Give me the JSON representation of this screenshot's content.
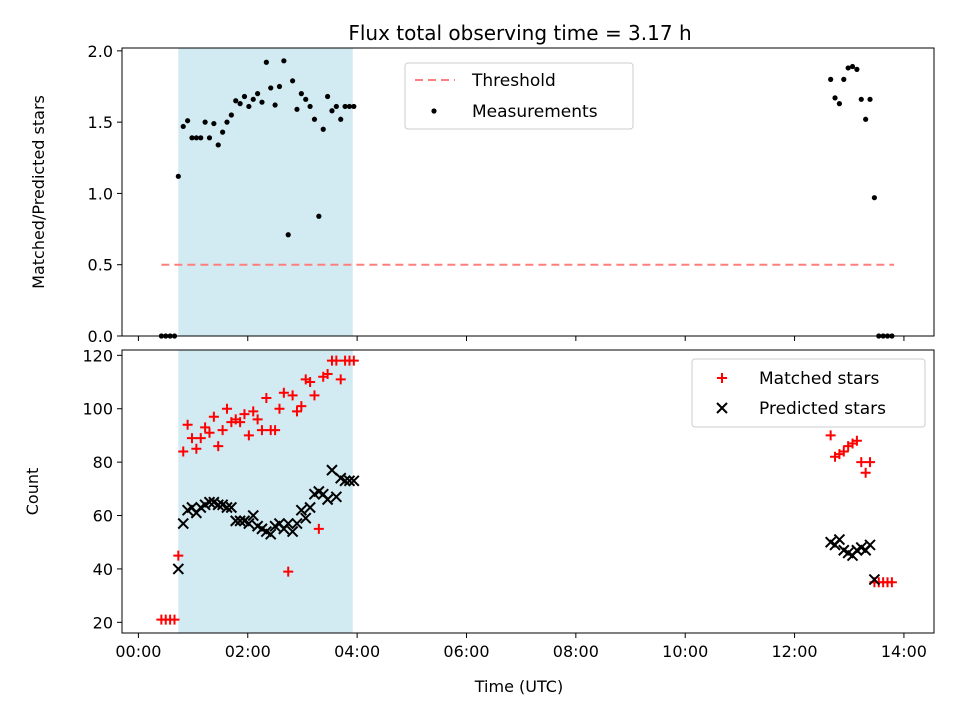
{
  "title": "Flux total observing time = 3.17 h",
  "xlabel": "Time (UTC)",
  "colors": {
    "threshold": "#ff7f7f",
    "measurements": "#000000",
    "matched": "#ff0000",
    "predicted": "#000000",
    "span": "#add8e6"
  },
  "chart_data": [
    {
      "type": "scatter",
      "ylabel": "Matched/Predicted stars",
      "xlim": [
        -0.3,
        14.55
      ],
      "ylim": [
        0,
        2.02
      ],
      "yticks": [
        0.0,
        0.5,
        1.0,
        1.5,
        2.0
      ],
      "ytick_labels": [
        "0.0",
        "0.5",
        "1.0",
        "1.5",
        "2.0"
      ],
      "shaded_span": [
        0.73,
        3.92
      ],
      "grid": false,
      "legend_position": "upper-center",
      "series": [
        {
          "name": "Threshold",
          "kind": "dashed-line",
          "x": [
            0.42,
            13.82
          ],
          "y": [
            0.5,
            0.5
          ]
        },
        {
          "name": "Measurements",
          "kind": "dot",
          "x": [
            0.42,
            0.5,
            0.58,
            0.66,
            0.73,
            0.82,
            0.9,
            0.98,
            1.06,
            1.14,
            1.22,
            1.3,
            1.38,
            1.46,
            1.54,
            1.62,
            1.7,
            1.78,
            1.86,
            1.94,
            2.02,
            2.1,
            2.18,
            2.26,
            2.34,
            2.42,
            2.5,
            2.58,
            2.66,
            2.74,
            2.82,
            2.9,
            2.98,
            3.06,
            3.14,
            3.22,
            3.3,
            3.38,
            3.46,
            3.54,
            3.62,
            3.7,
            3.78,
            3.86,
            3.94,
            12.66,
            12.74,
            12.82,
            12.9,
            12.98,
            13.06,
            13.14,
            13.22,
            13.3,
            13.38,
            13.46,
            13.54,
            13.62,
            13.7,
            13.78
          ],
          "y": [
            0.0,
            0.0,
            0.0,
            0.0,
            1.12,
            1.47,
            1.51,
            1.39,
            1.39,
            1.39,
            1.5,
            1.39,
            1.49,
            1.34,
            1.43,
            1.5,
            1.55,
            1.65,
            1.63,
            1.68,
            1.61,
            1.66,
            1.7,
            1.64,
            1.92,
            1.74,
            1.62,
            1.75,
            1.93,
            0.71,
            1.79,
            1.59,
            1.7,
            1.66,
            1.61,
            1.52,
            0.84,
            1.45,
            1.68,
            1.58,
            1.61,
            1.52,
            1.61,
            1.61,
            1.61,
            1.8,
            1.67,
            1.63,
            1.8,
            1.88,
            1.89,
            1.87,
            1.66,
            1.52,
            1.66,
            0.97,
            0.0,
            0.0,
            0.0,
            0.0
          ]
        }
      ]
    },
    {
      "type": "scatter",
      "ylabel": "Count",
      "xlabel": "Time (UTC)",
      "xlim": [
        -0.3,
        14.55
      ],
      "ylim": [
        16,
        122
      ],
      "yticks": [
        20,
        40,
        60,
        80,
        100,
        120
      ],
      "ytick_labels": [
        "20",
        "40",
        "60",
        "80",
        "100",
        "120"
      ],
      "xticks": [
        0,
        2,
        4,
        6,
        8,
        10,
        12,
        14
      ],
      "xtick_labels": [
        "00:00",
        "02:00",
        "04:00",
        "06:00",
        "08:00",
        "10:00",
        "12:00",
        "14:00"
      ],
      "shaded_span": [
        0.73,
        3.92
      ],
      "grid": false,
      "legend_position": "upper-right",
      "series": [
        {
          "name": "Matched stars",
          "kind": "plus",
          "x": [
            0.42,
            0.5,
            0.58,
            0.66,
            0.73,
            0.82,
            0.9,
            0.98,
            1.06,
            1.14,
            1.22,
            1.3,
            1.38,
            1.46,
            1.54,
            1.62,
            1.7,
            1.78,
            1.86,
            1.94,
            2.02,
            2.1,
            2.18,
            2.26,
            2.34,
            2.42,
            2.5,
            2.58,
            2.66,
            2.74,
            2.82,
            2.9,
            2.98,
            3.06,
            3.14,
            3.22,
            3.3,
            3.38,
            3.46,
            3.54,
            3.62,
            3.7,
            3.78,
            3.86,
            3.94,
            12.66,
            12.74,
            12.82,
            12.9,
            12.98,
            13.06,
            13.14,
            13.22,
            13.3,
            13.38,
            13.46,
            13.54,
            13.62,
            13.7,
            13.78
          ],
          "y": [
            21,
            21,
            21,
            21,
            45,
            84,
            94,
            89,
            85,
            89,
            93,
            91,
            97,
            86,
            92,
            100,
            95,
            96,
            95,
            98,
            90,
            99,
            96,
            92,
            104,
            92,
            92,
            100,
            106,
            39,
            105,
            99,
            101,
            111,
            110,
            105,
            55,
            112,
            113,
            118,
            118,
            111,
            118,
            118,
            118,
            90,
            82,
            83,
            84,
            86,
            87,
            88,
            80,
            76,
            80,
            35,
            35,
            35,
            35,
            35
          ]
        },
        {
          "name": "Predicted stars",
          "kind": "cross",
          "x": [
            0.73,
            0.82,
            0.9,
            0.98,
            1.06,
            1.14,
            1.22,
            1.3,
            1.38,
            1.46,
            1.54,
            1.62,
            1.7,
            1.78,
            1.86,
            1.94,
            2.02,
            2.1,
            2.18,
            2.26,
            2.34,
            2.42,
            2.5,
            2.58,
            2.66,
            2.74,
            2.82,
            2.9,
            2.98,
            3.06,
            3.14,
            3.22,
            3.3,
            3.38,
            3.46,
            3.54,
            3.62,
            3.7,
            3.78,
            3.86,
            3.94,
            12.66,
            12.74,
            12.82,
            12.9,
            12.98,
            13.06,
            13.14,
            13.22,
            13.3,
            13.38,
            13.46
          ],
          "y": [
            40,
            57,
            62,
            63,
            61,
            63,
            64,
            65,
            65,
            64,
            64,
            63,
            63,
            58,
            58,
            58,
            57,
            60,
            56,
            55,
            54,
            53,
            56,
            57,
            55,
            57,
            54,
            57,
            62,
            59,
            63,
            68,
            69,
            68,
            66,
            77,
            67,
            74,
            73,
            73,
            73,
            50,
            49,
            51,
            47,
            46,
            45,
            47,
            48,
            47,
            49,
            36
          ]
        }
      ]
    }
  ]
}
